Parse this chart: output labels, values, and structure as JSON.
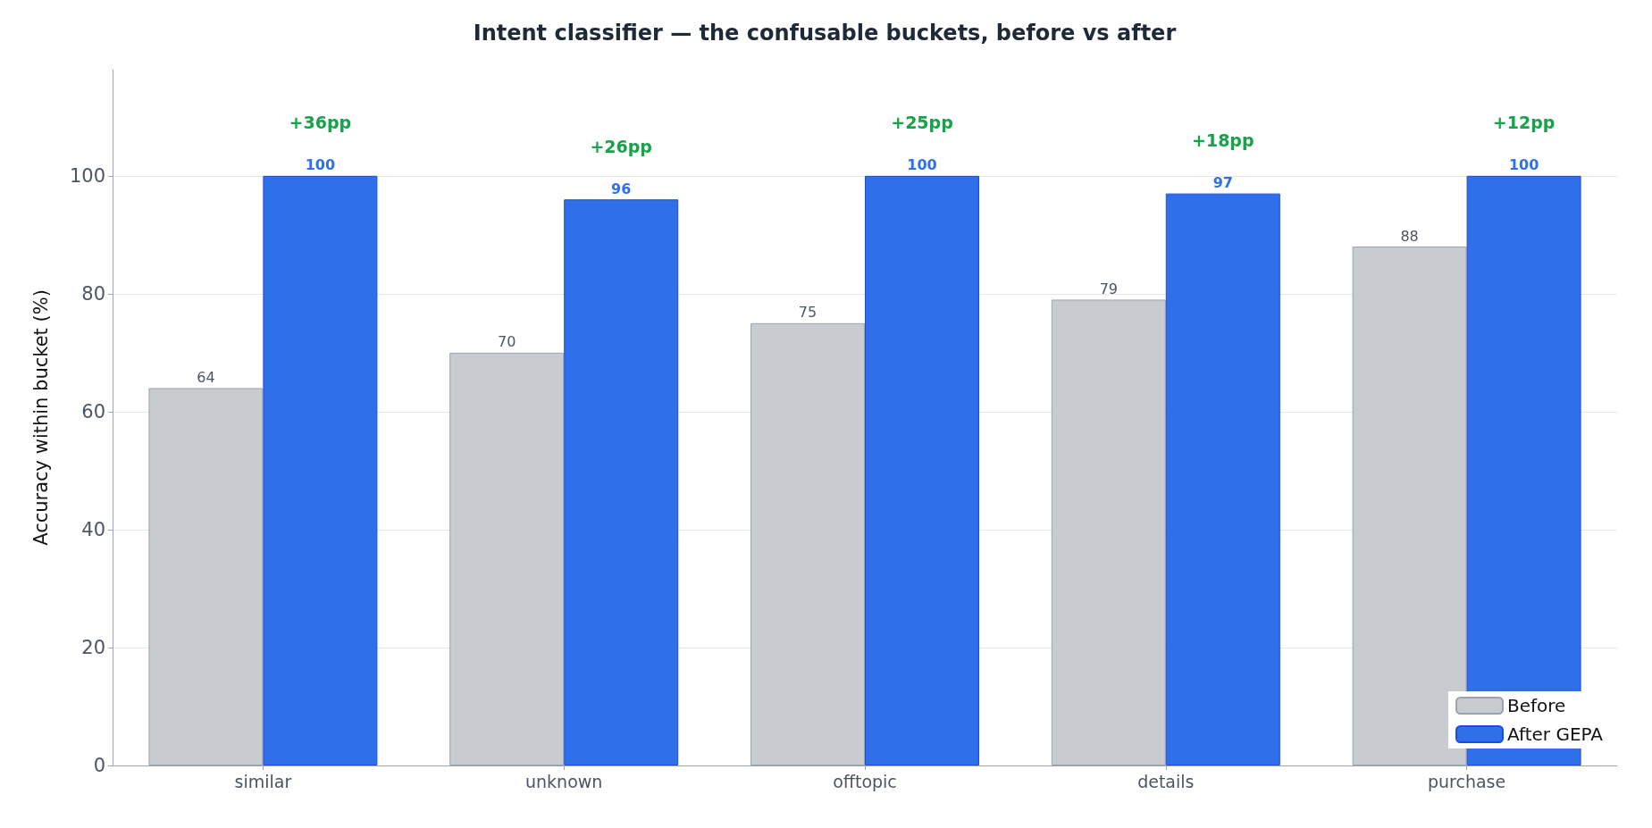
{
  "chart_data": {
    "type": "bar",
    "title": "Intent classifier — the confusable buckets, before vs after",
    "ylabel": "Accuracy within bucket (%)",
    "categories": [
      "similar",
      "unknown",
      "offtopic",
      "details",
      "purchase"
    ],
    "series": [
      {
        "name": "Before",
        "color": "#c8ccd1",
        "values": [
          64,
          70,
          75,
          79,
          88
        ]
      },
      {
        "name": "After GEPA",
        "color": "#2f6fea",
        "values": [
          100,
          96,
          100,
          97,
          100
        ]
      }
    ],
    "ylim": [
      0,
      118
    ],
    "yticks": [
      0,
      20,
      40,
      60,
      80,
      100
    ],
    "grid": "y",
    "legend": "bottom right",
    "data_labels": true,
    "annotations": [
      "+36pp",
      "+26pp",
      "+25pp",
      "+18pp",
      "+12pp"
    ]
  }
}
